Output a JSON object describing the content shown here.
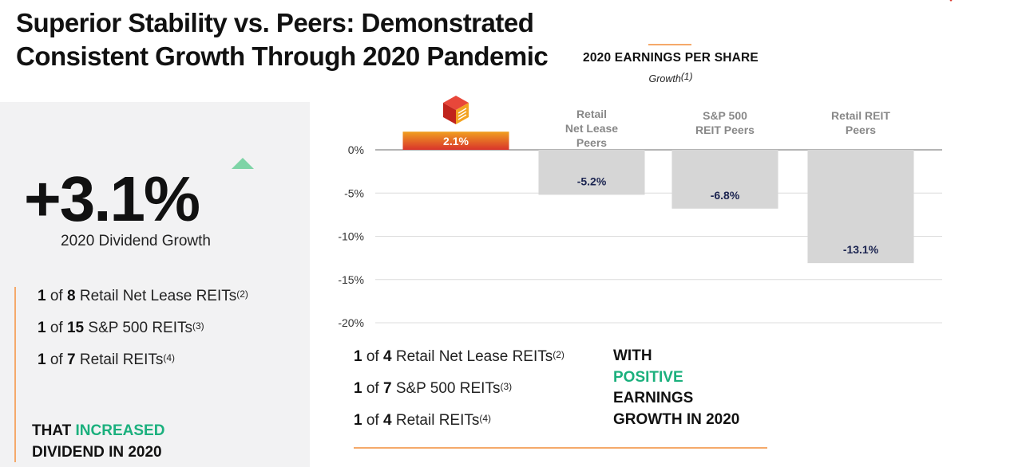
{
  "title": {
    "line1": "Superior Stability vs. Peers: Demonstrated",
    "line2": "Consistent Growth Through 2020 Pandemic"
  },
  "left": {
    "stat": "+3.1%",
    "stat_label": "2020 Dividend Growth",
    "items": [
      {
        "prefix": "1",
        "of": " of ",
        "count": "8",
        "label": " Retail Net Lease REITs",
        "note": "(2)"
      },
      {
        "prefix": "1",
        "of": " of ",
        "count": "15",
        "label": " S&P 500 REITs",
        "note": "(3)"
      },
      {
        "prefix": "1",
        "of": " of ",
        "count": "7",
        "label": " Retail REITs",
        "note": "(4)"
      }
    ],
    "cta_pre": "THAT ",
    "cta_highlight": "INCREASED",
    "cta_line2": "DIVIDEND IN 2020"
  },
  "chart_list": [
    {
      "prefix": "1",
      "of": " of ",
      "count": "4",
      "label": " Retail Net Lease REITs",
      "note": "(2)"
    },
    {
      "prefix": "1",
      "of": " of ",
      "count": "7",
      "label": " S&P 500 REITs",
      "note": "(3)"
    },
    {
      "prefix": "1",
      "of": " of ",
      "count": "4",
      "label": " Retail REITs",
      "note": "(4)"
    }
  ],
  "right_cta": {
    "line1": "WITH",
    "line2": "POSITIVE",
    "line3": "EARNINGS",
    "line4": "GROWTH IN 2020"
  },
  "colors": {
    "accent_orange": "#f5a96a",
    "green": "#1bb07d",
    "bar_company_top": "#f0a020",
    "bar_company_bottom": "#d9342b",
    "bar_peer": "#d6d6d6",
    "value_label": "#1b2450"
  },
  "chart_data": {
    "type": "bar",
    "title": "2020 EARNINGS PER SHARE",
    "subtitle": "Growth",
    "subtitle_note": "(1)",
    "categories": [
      "company-logo",
      "Retail Net Lease Peers",
      "S&P 500 REIT Peers",
      "Retail REIT Peers"
    ],
    "category_lines": [
      [],
      [
        "Retail",
        "Net Lease",
        "Peers"
      ],
      [
        "S&P 500",
        "REIT Peers"
      ],
      [
        "Retail REIT",
        "Peers"
      ]
    ],
    "values": [
      2.1,
      -5.2,
      -6.8,
      -13.1
    ],
    "value_labels": [
      "2.1%",
      "-5.2%",
      "-6.8%",
      "-13.1%"
    ],
    "yticks": [
      0,
      -5,
      -10,
      -15,
      -20
    ],
    "ytick_labels": [
      "0%",
      "-5%",
      "-10%",
      "-15%",
      "-20%"
    ],
    "ylim": [
      -20,
      2.1
    ],
    "grid": true,
    "xlabel": "",
    "ylabel": ""
  }
}
